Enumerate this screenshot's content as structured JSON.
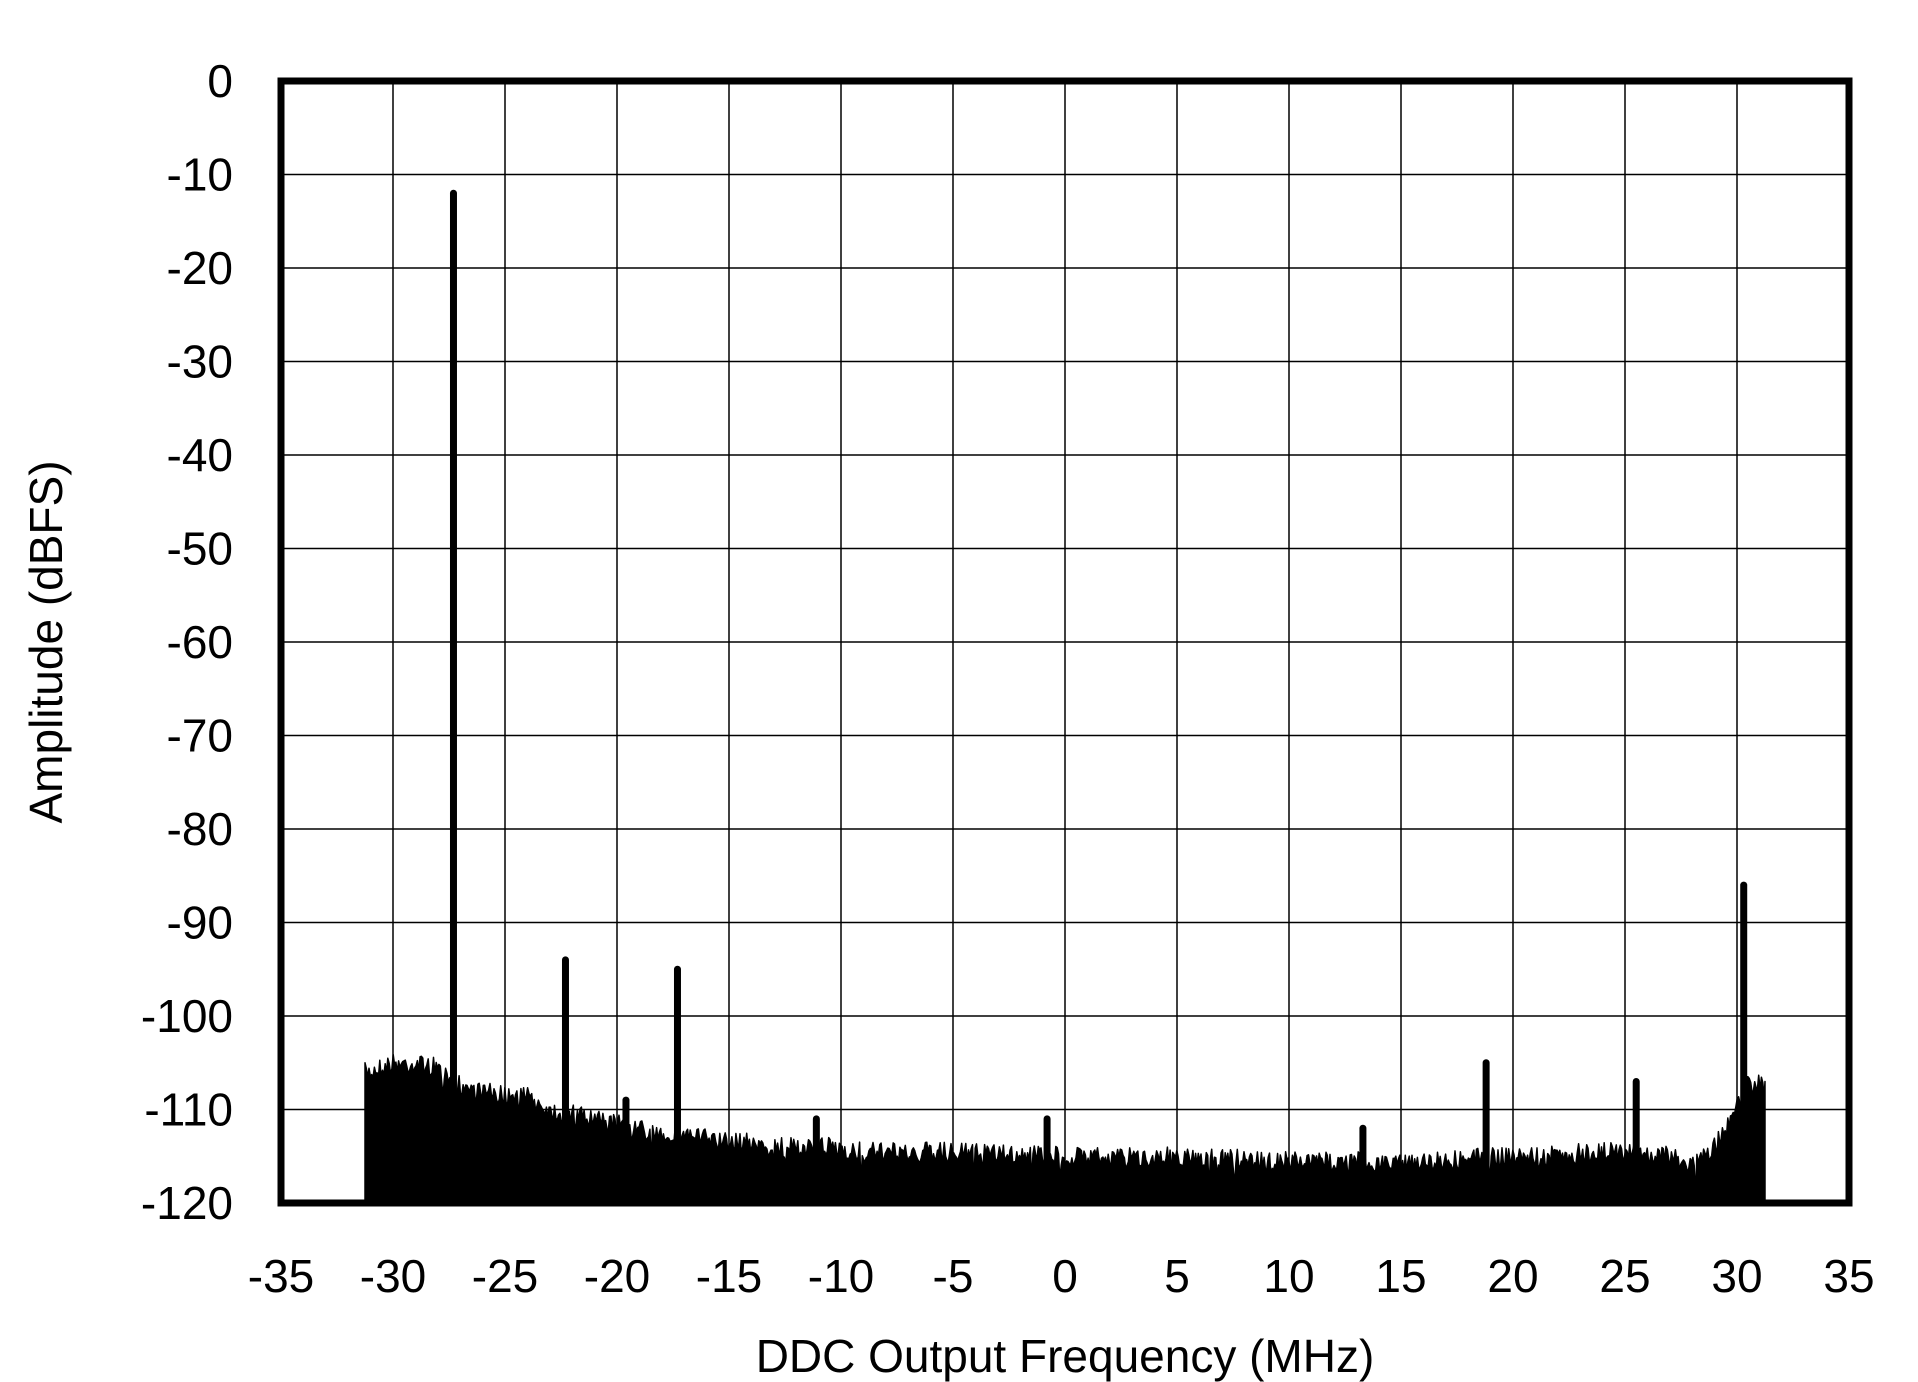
{
  "chart_data": {
    "type": "area",
    "title": "",
    "xlabel": "DDC Output Frequency (MHz)",
    "ylabel": "Amplitude (dBFS)",
    "xlim": [
      -35,
      35
    ],
    "ylim": [
      -120,
      0
    ],
    "xticks": [
      -35,
      -30,
      -25,
      -20,
      -15,
      -10,
      -5,
      0,
      5,
      10,
      15,
      20,
      25,
      30,
      35
    ],
    "yticks": [
      0,
      -10,
      -20,
      -30,
      -40,
      -50,
      -60,
      -70,
      -80,
      -90,
      -100,
      -110,
      -120
    ],
    "grid": true,
    "legend": "none",
    "color": "#000000",
    "noise_floor": {
      "x": [
        -31.25,
        -30,
        -29,
        -28,
        -27.5,
        -26,
        -25,
        -24,
        -23,
        -22,
        -21,
        -20,
        -19,
        -18,
        -17,
        -16,
        -15,
        -14,
        -13,
        -12,
        -11,
        -10,
        -9,
        -5,
        0,
        5,
        10,
        15,
        20,
        24,
        26,
        27,
        28,
        29,
        29.5,
        30,
        30.5,
        31,
        31.25
      ],
      "y": [
        -105,
        -104,
        -104,
        -104.5,
        -106,
        -107,
        -107.5,
        -107.5,
        -109,
        -109.5,
        -110,
        -110.5,
        -111,
        -111.5,
        -111.5,
        -112,
        -112.5,
        -112.5,
        -113,
        -113,
        -113,
        -113,
        -113.5,
        -113.5,
        -114,
        -114,
        -114.5,
        -114.5,
        -114,
        -113.5,
        -113.5,
        -114,
        -115,
        -113,
        -111,
        -108,
        -106,
        -106,
        -107
      ]
    },
    "spurs": [
      {
        "x": -27.3,
        "y": -12
      },
      {
        "x": -22.3,
        "y": -94
      },
      {
        "x": -17.3,
        "y": -95
      },
      {
        "x": -19.6,
        "y": -109
      },
      {
        "x": -11.1,
        "y": -111
      },
      {
        "x": -0.8,
        "y": -111
      },
      {
        "x": 13.3,
        "y": -112
      },
      {
        "x": 18.8,
        "y": -105
      },
      {
        "x": 25.5,
        "y": -107
      },
      {
        "x": 30.3,
        "y": -86
      }
    ]
  }
}
